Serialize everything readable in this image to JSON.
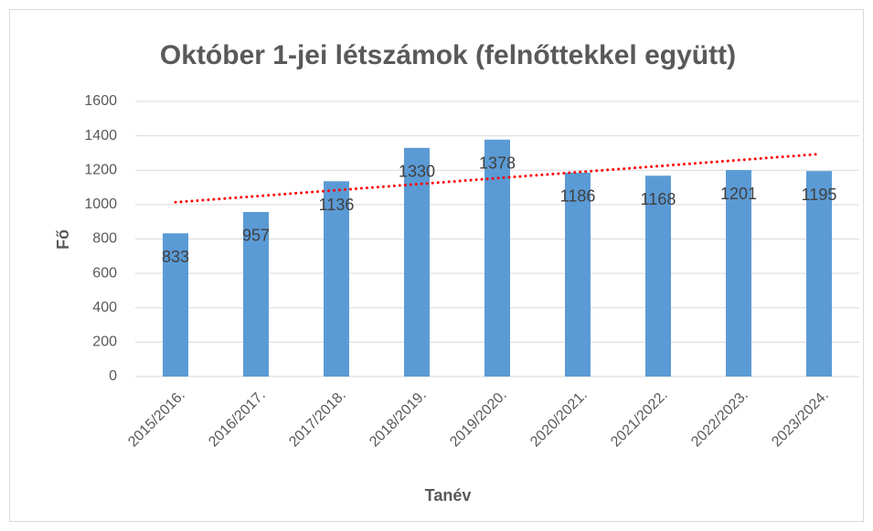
{
  "chart_data": {
    "type": "bar",
    "title": "Október 1-jei létszámok (felnőttekkel együtt)",
    "x_label": "Tanév",
    "y_label": "Fő",
    "categories": [
      "2015/2016.",
      "2016/2017.",
      "2017/2018.",
      "2018/2019.",
      "2019/2020.",
      "2020/2021.",
      "2021/2022.",
      "2022/2023.",
      "2023/2024."
    ],
    "values": [
      833,
      957,
      1136,
      1330,
      1378,
      1186,
      1168,
      1201,
      1195
    ],
    "color": "#5b9bd5",
    "ylim": [
      0,
      1600
    ],
    "yticks": [
      0,
      200,
      400,
      600,
      800,
      1000,
      1200,
      1400,
      1600
    ],
    "grid": true,
    "trendline": {
      "type": "linear",
      "color": "#ff0000"
    }
  }
}
